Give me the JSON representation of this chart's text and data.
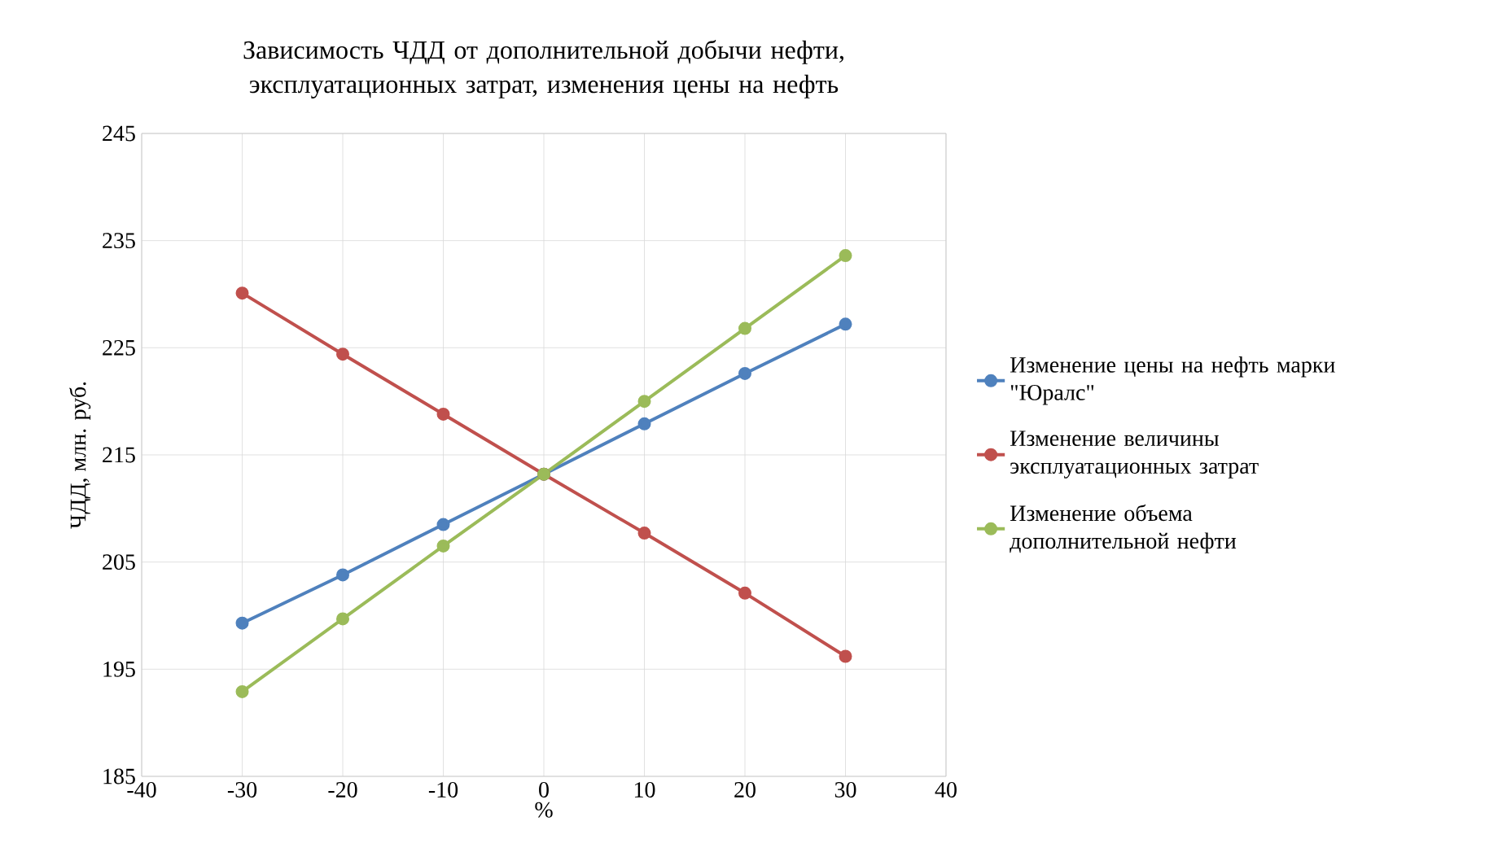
{
  "chart_data": {
    "type": "line",
    "title": "Зависимость ЧДД от дополнительной добычи нефти, эксплуатационных затрат, изменения цены на нефть",
    "xlabel": "%",
    "ylabel": "ЧДД, млн. руб.",
    "x": [
      -30,
      -20,
      -10,
      0,
      10,
      20,
      30
    ],
    "series": [
      {
        "name": "Изменение цены на нефть марки \"Юралс\"",
        "color": "#4f81bd",
        "values": [
          199.3,
          203.8,
          208.5,
          213.2,
          217.9,
          222.6,
          227.2
        ]
      },
      {
        "name": "Изменение величины эксплуатационных затрат",
        "color": "#c0504d",
        "values": [
          230.1,
          224.4,
          218.8,
          213.2,
          207.7,
          202.1,
          196.2
        ]
      },
      {
        "name": "Изменение объема дополнительной нефти",
        "color": "#9bbb59",
        "values": [
          192.9,
          199.7,
          206.5,
          213.2,
          220.0,
          226.8,
          233.6
        ]
      }
    ],
    "xlim": [
      -40,
      40
    ],
    "ylim": [
      185,
      245
    ],
    "xticks": [
      -40,
      -30,
      -20,
      -10,
      0,
      10,
      20,
      30,
      40
    ],
    "yticks": [
      185,
      195,
      205,
      215,
      225,
      235,
      245
    ],
    "grid": true,
    "legend": "right",
    "marker": "circle"
  }
}
